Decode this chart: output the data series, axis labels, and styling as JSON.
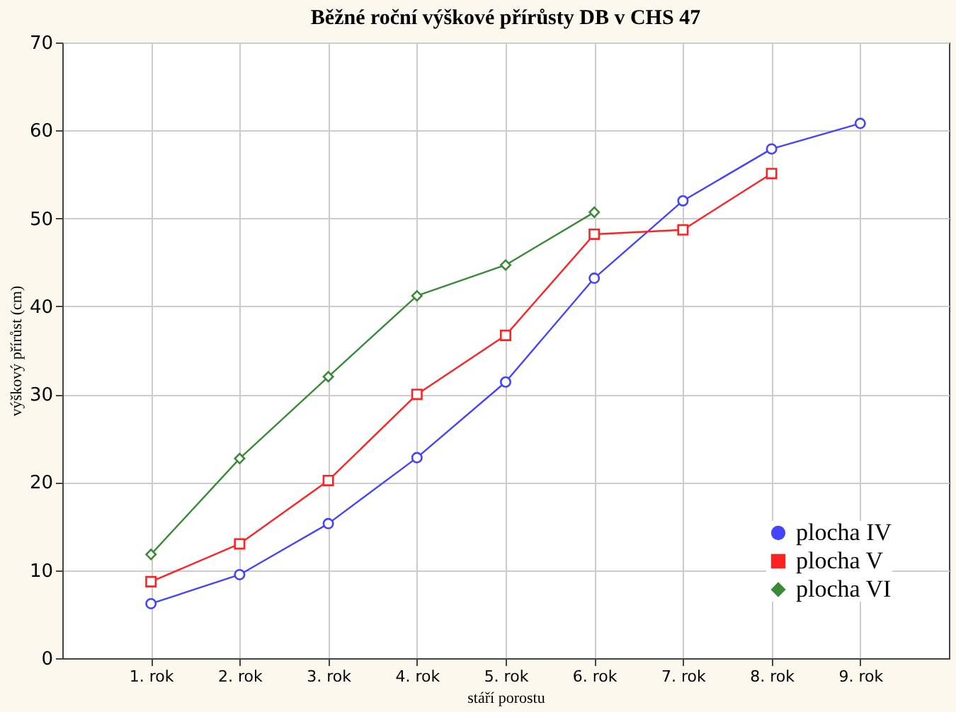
{
  "chart_data": {
    "type": "line",
    "title": "Běžné roční výškové přírůsty DB v CHS 47",
    "xlabel": "stáří porostu",
    "ylabel": "výškový přírůst (cm)",
    "categories": [
      "1. rok",
      "2. rok",
      "3. rok",
      "4. rok",
      "5. rok",
      "6. rok",
      "7. rok",
      "8. rok",
      "9. rok"
    ],
    "series": [
      {
        "name": "plocha IV",
        "color": "#4444ff",
        "marker": "circle",
        "values": [
          6.2,
          9.5,
          15.3,
          22.8,
          31.4,
          43.2,
          52.0,
          57.9,
          60.8
        ]
      },
      {
        "name": "plocha V",
        "color": "#ff2222",
        "marker": "square",
        "values": [
          8.7,
          13.0,
          20.2,
          30.0,
          36.7,
          48.2,
          48.7,
          55.1,
          null
        ]
      },
      {
        "name": "plocha VI",
        "color": "#3a8a3a",
        "marker": "diamond",
        "values": [
          11.8,
          22.7,
          32.0,
          41.2,
          44.7,
          50.7,
          null,
          null,
          null
        ]
      }
    ],
    "ylim": [
      0,
      70
    ],
    "yticks": [
      0,
      10,
      20,
      30,
      40,
      50,
      60,
      70
    ],
    "grid": true,
    "legend": "bottom right",
    "line_style": "solid"
  }
}
